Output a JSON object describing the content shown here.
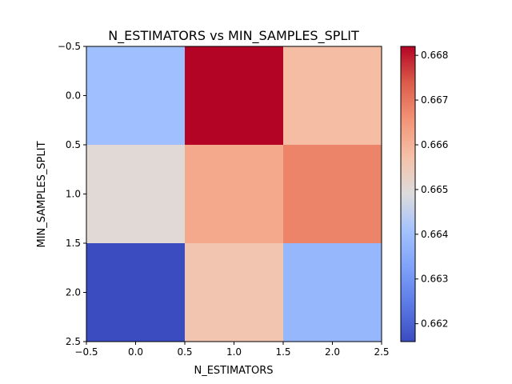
{
  "chart_data": {
    "type": "heatmap",
    "title": "N_ESTIMATORS vs MIN_SAMPLES_SPLIT",
    "xlabel": "N_ESTIMATORS",
    "ylabel": "MIN_SAMPLES_SPLIT",
    "xlim": [
      -0.5,
      2.5
    ],
    "ylim": [
      2.5,
      -0.5
    ],
    "x_ticks": [
      "−0.5",
      "0.0",
      "0.5",
      "1.0",
      "1.5",
      "2.0",
      "2.5"
    ],
    "y_ticks": [
      "−0.5",
      "0.0",
      "0.5",
      "1.0",
      "1.5",
      "2.0",
      "2.5"
    ],
    "values": [
      [
        0.664,
        0.6682,
        0.6658
      ],
      [
        0.665,
        0.6662,
        0.6668
      ],
      [
        0.6616,
        0.6656,
        0.6638
      ]
    ],
    "colormap": "coolwarm",
    "colorbar": {
      "min": 0.6616,
      "max": 0.6682,
      "ticks": [
        "0.662",
        "0.663",
        "0.664",
        "0.665",
        "0.666",
        "0.667",
        "0.668"
      ],
      "tick_values": [
        0.662,
        0.663,
        0.664,
        0.665,
        0.666,
        0.667,
        0.668
      ]
    },
    "grid": false
  }
}
